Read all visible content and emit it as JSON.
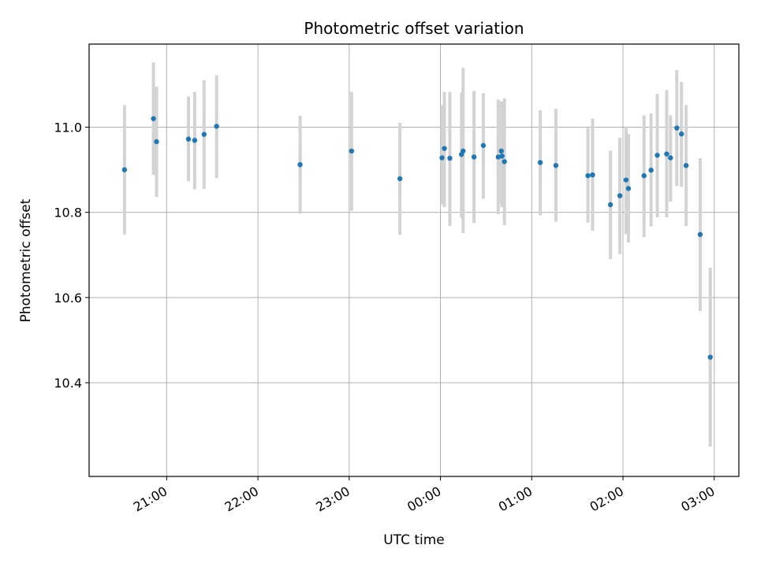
{
  "chart_data": {
    "type": "scatter",
    "title": "Photometric offset variation",
    "xlabel": "UTC time",
    "ylabel": "Photometric offset",
    "x_unit": "UTC time of night (hours past 00:00; negative = previous evening)",
    "xlim": [
      -3.85,
      3.27
    ],
    "ylim": [
      10.18,
      11.195
    ],
    "x_ticks": [
      {
        "value": -3.0,
        "label": "21:00"
      },
      {
        "value": -2.0,
        "label": "22:00"
      },
      {
        "value": -1.0,
        "label": "23:00"
      },
      {
        "value": 0.0,
        "label": "00:00"
      },
      {
        "value": 1.0,
        "label": "01:00"
      },
      {
        "value": 2.0,
        "label": "02:00"
      },
      {
        "value": 3.0,
        "label": "03:00"
      }
    ],
    "y_ticks": [
      {
        "value": 10.4,
        "label": "10.4"
      },
      {
        "value": 10.6,
        "label": "10.6"
      },
      {
        "value": 10.8,
        "label": "10.8"
      },
      {
        "value": 11.0,
        "label": "11.0"
      }
    ],
    "grid": true,
    "marker_color": "#1f77b4",
    "errorbar_color": "#d3d3d3",
    "series": [
      {
        "points": [
          {
            "x": -3.462,
            "y": 10.9,
            "lo": 10.748,
            "hi": 11.052
          },
          {
            "x": -3.145,
            "y": 11.02,
            "lo": 10.888,
            "hi": 11.152
          },
          {
            "x": -3.111,
            "y": 10.966,
            "lo": 10.836,
            "hi": 11.095
          },
          {
            "x": -2.761,
            "y": 10.972,
            "lo": 10.873,
            "hi": 11.072
          },
          {
            "x": -2.693,
            "y": 10.969,
            "lo": 10.854,
            "hi": 11.083
          },
          {
            "x": -2.59,
            "y": 10.983,
            "lo": 10.855,
            "hi": 11.11
          },
          {
            "x": -2.453,
            "y": 11.002,
            "lo": 10.88,
            "hi": 11.122
          },
          {
            "x": -1.538,
            "y": 10.912,
            "lo": 10.797,
            "hi": 11.027
          },
          {
            "x": -0.974,
            "y": 10.944,
            "lo": 10.804,
            "hi": 11.083
          },
          {
            "x": -0.444,
            "y": 10.879,
            "lo": 10.747,
            "hi": 11.01
          },
          {
            "x": 0.017,
            "y": 10.928,
            "lo": 10.818,
            "hi": 11.052
          },
          {
            "x": 0.043,
            "y": 10.95,
            "lo": 10.812,
            "hi": 11.083
          },
          {
            "x": 0.103,
            "y": 10.927,
            "lo": 10.768,
            "hi": 11.083
          },
          {
            "x": 0.231,
            "y": 10.936,
            "lo": 10.787,
            "hi": 11.081
          },
          {
            "x": 0.248,
            "y": 10.944,
            "lo": 10.751,
            "hi": 11.139
          },
          {
            "x": 0.368,
            "y": 10.93,
            "lo": 10.775,
            "hi": 11.085
          },
          {
            "x": 0.47,
            "y": 10.957,
            "lo": 10.832,
            "hi": 11.08
          },
          {
            "x": 0.633,
            "y": 10.93,
            "lo": 10.796,
            "hi": 11.065
          },
          {
            "x": 0.667,
            "y": 10.944,
            "lo": 10.822,
            "hi": 11.06
          },
          {
            "x": 0.675,
            "y": 10.932,
            "lo": 10.812,
            "hi": 11.061
          },
          {
            "x": 0.701,
            "y": 10.919,
            "lo": 10.77,
            "hi": 11.068
          },
          {
            "x": 1.094,
            "y": 10.917,
            "lo": 10.793,
            "hi": 11.04
          },
          {
            "x": 1.265,
            "y": 10.91,
            "lo": 10.778,
            "hi": 11.043
          },
          {
            "x": 1.616,
            "y": 10.886,
            "lo": 10.776,
            "hi": 10.998
          },
          {
            "x": 1.667,
            "y": 10.888,
            "lo": 10.757,
            "hi": 11.02
          },
          {
            "x": 1.863,
            "y": 10.818,
            "lo": 10.69,
            "hi": 10.945
          },
          {
            "x": 1.966,
            "y": 10.839,
            "lo": 10.702,
            "hi": 10.975
          },
          {
            "x": 2.034,
            "y": 10.876,
            "lo": 10.748,
            "hi": 11.002
          },
          {
            "x": 2.06,
            "y": 10.856,
            "lo": 10.729,
            "hi": 10.984
          },
          {
            "x": 2.231,
            "y": 10.886,
            "lo": 10.742,
            "hi": 11.028
          },
          {
            "x": 2.308,
            "y": 10.899,
            "lo": 10.767,
            "hi": 11.032
          },
          {
            "x": 2.376,
            "y": 10.934,
            "lo": 10.788,
            "hi": 11.078
          },
          {
            "x": 2.479,
            "y": 10.937,
            "lo": 10.788,
            "hi": 11.087
          },
          {
            "x": 2.521,
            "y": 10.928,
            "lo": 10.825,
            "hi": 11.028
          },
          {
            "x": 2.59,
            "y": 10.998,
            "lo": 10.862,
            "hi": 11.134
          },
          {
            "x": 2.641,
            "y": 10.984,
            "lo": 10.86,
            "hi": 11.106
          },
          {
            "x": 2.692,
            "y": 10.91,
            "lo": 10.768,
            "hi": 11.052
          },
          {
            "x": 2.846,
            "y": 10.748,
            "lo": 10.568,
            "hi": 10.927
          },
          {
            "x": 2.957,
            "y": 10.46,
            "lo": 10.25,
            "hi": 10.67
          }
        ]
      }
    ]
  }
}
